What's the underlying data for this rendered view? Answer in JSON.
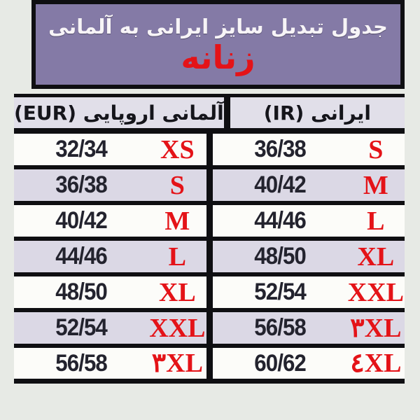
{
  "page": {
    "background_color": "#e7eae5",
    "accent_purple": "#847aa6",
    "accent_red": "#e41318",
    "line_black": "#0f0f12",
    "row_alt_color": "#dbd8e5"
  },
  "header": {
    "title": "جدول تبدیل سایز ایرانی به آلمانی",
    "subtitle": "زنانه"
  },
  "table": {
    "columns": [
      {
        "key": "eur",
        "label": "آلمانی اروپایی (EUR)"
      },
      {
        "key": "ir",
        "label": "ایرانی (IR)"
      }
    ],
    "rows": [
      {
        "eur_num": "32/34",
        "eur_size": "XS",
        "ir_num": "36/38",
        "ir_size": "S"
      },
      {
        "eur_num": "36/38",
        "eur_size": "S",
        "ir_num": "40/42",
        "ir_size": "M"
      },
      {
        "eur_num": "40/42",
        "eur_size": "M",
        "ir_num": "44/46",
        "ir_size": "L"
      },
      {
        "eur_num": "44/46",
        "eur_size": "L",
        "ir_num": "48/50",
        "ir_size": "XL"
      },
      {
        "eur_num": "48/50",
        "eur_size": "XL",
        "ir_num": "52/54",
        "ir_size": "XXL"
      },
      {
        "eur_num": "52/54",
        "eur_size": "XXL",
        "ir_num": "56/58",
        "ir_size": "۳XL"
      },
      {
        "eur_num": "56/58",
        "eur_size": "۳XL",
        "ir_num": "60/62",
        "ir_size": "٤XL"
      }
    ]
  }
}
